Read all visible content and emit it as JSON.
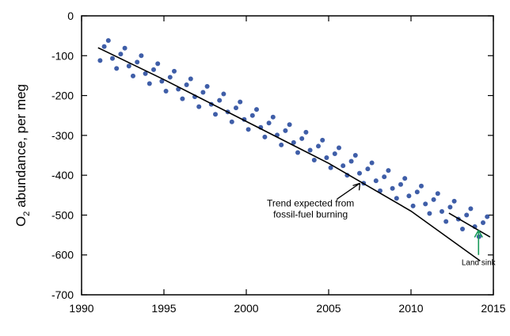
{
  "chart_data": {
    "type": "scatter",
    "y_label": {
      "main": "O",
      "sub": "2",
      "rest": " abundance, per meg"
    },
    "xlim": [
      1990,
      2015
    ],
    "xticks": [
      1990,
      1995,
      2000,
      2005,
      2010,
      2015
    ],
    "ylim": [
      -700,
      0
    ],
    "yticks": [
      -700,
      -600,
      -500,
      -400,
      -300,
      -200,
      -100,
      0
    ],
    "series": [
      {
        "color": "#3f5ea8",
        "x": [
          1991.125,
          1991.375,
          1991.625,
          1991.875,
          1992.125,
          1992.375,
          1992.625,
          1992.875,
          1993.125,
          1993.375,
          1993.625,
          1993.875,
          1994.125,
          1994.375,
          1994.625,
          1994.875,
          1995.125,
          1995.375,
          1995.625,
          1995.875,
          1996.125,
          1996.375,
          1996.625,
          1996.875,
          1997.125,
          1997.375,
          1997.625,
          1997.875,
          1998.125,
          1998.375,
          1998.625,
          1998.875,
          1999.125,
          1999.375,
          1999.625,
          1999.875,
          2000.125,
          2000.375,
          2000.625,
          2000.875,
          2001.125,
          2001.375,
          2001.625,
          2001.875,
          2002.125,
          2002.375,
          2002.625,
          2002.875,
          2003.125,
          2003.375,
          2003.625,
          2003.875,
          2004.125,
          2004.375,
          2004.625,
          2004.875,
          2005.125,
          2005.375,
          2005.625,
          2005.875,
          2006.125,
          2006.375,
          2006.625,
          2006.875,
          2007.125,
          2007.375,
          2007.625,
          2007.875,
          2008.125,
          2008.375,
          2008.625,
          2008.875,
          2009.125,
          2009.375,
          2009.625,
          2009.875,
          2010.125,
          2010.375,
          2010.625,
          2010.875,
          2011.125,
          2011.375,
          2011.625,
          2011.875,
          2012.125,
          2012.375,
          2012.625,
          2012.875,
          2013.125,
          2013.375,
          2013.625,
          2013.875,
          2014.125,
          2014.375,
          2014.625
        ],
        "values": [
          -112,
          -77,
          -62,
          -107,
          -132,
          -96,
          -81,
          -126,
          -151,
          -116,
          -100,
          -145,
          -170,
          -135,
          -120,
          -164,
          -189,
          -154,
          -139,
          -184,
          -208,
          -173,
          -158,
          -203,
          -228,
          -192,
          -177,
          -222,
          -247,
          -212,
          -196,
          -241,
          -266,
          -231,
          -216,
          -260,
          -285,
          -250,
          -235,
          -280,
          -304,
          -269,
          -254,
          -299,
          -324,
          -288,
          -273,
          -318,
          -343,
          -308,
          -292,
          -337,
          -362,
          -327,
          -312,
          -356,
          -381,
          -346,
          -331,
          -376,
          -400,
          -365,
          -350,
          -395,
          -420,
          -384,
          -369,
          -414,
          -439,
          -404,
          -388,
          -433,
          -458,
          -423,
          -408,
          -452,
          -477,
          -442,
          -427,
          -472,
          -496,
          -461,
          -446,
          -491,
          -516,
          -480,
          -465,
          -510,
          -535,
          -500,
          -484,
          -529,
          -554,
          -519,
          -504
        ]
      }
    ],
    "lines": [
      {
        "color": "#000000",
        "x": [
          1991,
          1995,
          2000,
          2005,
          2010,
          2014.2
        ],
        "values": [
          -80,
          -160,
          -265,
          -370,
          -490,
          -615
        ]
      },
      {
        "color": "#000000",
        "x": [
          2012.3,
          2014.8
        ],
        "values": [
          -495,
          -555
        ]
      }
    ],
    "annotations": [
      {
        "text": "Trend expected from",
        "x": 2003.9,
        "y": -478
      },
      {
        "text": "fossil-fuel burning",
        "x": 2003.9,
        "y": -506
      },
      {
        "text": "Land sink",
        "x": 2014.1,
        "y": -625,
        "color": "#1a9a5a"
      }
    ]
  }
}
